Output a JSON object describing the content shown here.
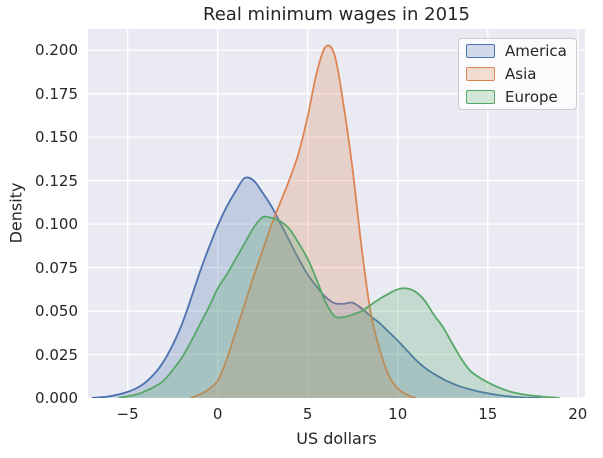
{
  "style": {
    "axes_bg": "#EAEAF2",
    "grid_color": "#FFFFFF",
    "text_color": "#262626",
    "legend_border": "#CCCCCC"
  },
  "chart_data": {
    "type": "area",
    "subtype": "kde-density",
    "title": "Real minimum wages in 2015",
    "xlabel": "US dollars",
    "ylabel": "Density",
    "xlim": [
      -7.2,
      20.4
    ],
    "ylim": [
      0,
      0.2122
    ],
    "grid": true,
    "legend_position": "upper-right",
    "xticks": {
      "values": [
        -5,
        0,
        5,
        10,
        15,
        20
      ],
      "labels": [
        "−5",
        "0",
        "5",
        "10",
        "15",
        "20"
      ]
    },
    "yticks": {
      "values": [
        0,
        0.025,
        0.05,
        0.075,
        0.1,
        0.125,
        0.15,
        0.175,
        0.2
      ],
      "labels": [
        "0.000",
        "0.025",
        "0.050",
        "0.075",
        "0.100",
        "0.125",
        "0.150",
        "0.175",
        "0.200"
      ]
    },
    "series": [
      {
        "name": "America",
        "color": "#4C72B0",
        "fill_opacity": 0.25,
        "peak": {
          "x": 1.5,
          "density": 0.1265
        },
        "points": [
          [
            -7,
            0
          ],
          [
            -6,
            0.001
          ],
          [
            -5,
            0.0035
          ],
          [
            -4,
            0.009
          ],
          [
            -3,
            0.021
          ],
          [
            -2,
            0.042
          ],
          [
            -1,
            0.072
          ],
          [
            -0.5,
            0.086
          ],
          [
            0,
            0.099
          ],
          [
            0.5,
            0.11
          ],
          [
            1,
            0.119
          ],
          [
            1.5,
            0.1265
          ],
          [
            2,
            0.125
          ],
          [
            2.5,
            0.118
          ],
          [
            3,
            0.11
          ],
          [
            3.5,
            0.1
          ],
          [
            4,
            0.09
          ],
          [
            4.5,
            0.08
          ],
          [
            5,
            0.071
          ],
          [
            5.5,
            0.064
          ],
          [
            6,
            0.058
          ],
          [
            6.5,
            0.0545
          ],
          [
            7,
            0.0542
          ],
          [
            7.5,
            0.0548
          ],
          [
            8,
            0.0515
          ],
          [
            8.5,
            0.047
          ],
          [
            9,
            0.043
          ],
          [
            9.5,
            0.038
          ],
          [
            10,
            0.033
          ],
          [
            10.5,
            0.0275
          ],
          [
            11,
            0.022
          ],
          [
            11.5,
            0.0175
          ],
          [
            12,
            0.014
          ],
          [
            12.5,
            0.011
          ],
          [
            13,
            0.0085
          ],
          [
            13.5,
            0.0065
          ],
          [
            14,
            0.005
          ],
          [
            14.5,
            0.0037
          ],
          [
            15,
            0.0027
          ],
          [
            15.5,
            0.0018
          ],
          [
            16,
            0.0011
          ],
          [
            16.5,
            0.0006
          ],
          [
            17,
            0.0003
          ],
          [
            17.5,
            0.0001
          ],
          [
            18,
            0
          ]
        ]
      },
      {
        "name": "Asia",
        "color": "#DD8452",
        "fill_opacity": 0.25,
        "peak": {
          "x": 6,
          "density": 0.202
        },
        "points": [
          [
            -1.5,
            0
          ],
          [
            -1,
            0.002
          ],
          [
            -0.5,
            0.005
          ],
          [
            0,
            0.01
          ],
          [
            0.5,
            0.022
          ],
          [
            1,
            0.038
          ],
          [
            1.5,
            0.054
          ],
          [
            2,
            0.07
          ],
          [
            2.5,
            0.085
          ],
          [
            3,
            0.1
          ],
          [
            3.5,
            0.113
          ],
          [
            4,
            0.126
          ],
          [
            4.5,
            0.141
          ],
          [
            5,
            0.162
          ],
          [
            5.5,
            0.187
          ],
          [
            6,
            0.202
          ],
          [
            6.5,
            0.197
          ],
          [
            7,
            0.168
          ],
          [
            7.5,
            0.131
          ],
          [
            8,
            0.086
          ],
          [
            8.5,
            0.049
          ],
          [
            9,
            0.028
          ],
          [
            9.5,
            0.013
          ],
          [
            10,
            0.0055
          ],
          [
            10.5,
            0.002
          ],
          [
            11,
            0
          ]
        ]
      },
      {
        "name": "Europe",
        "color": "#55A868",
        "fill_opacity": 0.25,
        "peak": {
          "x": 2.5,
          "density": 0.104
        },
        "points": [
          [
            -5.5,
            0
          ],
          [
            -5,
            0.001
          ],
          [
            -4.5,
            0.002
          ],
          [
            -4,
            0.004
          ],
          [
            -3.5,
            0.0065
          ],
          [
            -3,
            0.01
          ],
          [
            -2.5,
            0.016
          ],
          [
            -2,
            0.023
          ],
          [
            -1.5,
            0.032
          ],
          [
            -1,
            0.042
          ],
          [
            -0.5,
            0.052
          ],
          [
            0,
            0.063
          ],
          [
            0.5,
            0.071
          ],
          [
            1,
            0.08
          ],
          [
            1.5,
            0.089
          ],
          [
            2,
            0.098
          ],
          [
            2.5,
            0.104
          ],
          [
            3,
            0.1035
          ],
          [
            3.5,
            0.1015
          ],
          [
            4,
            0.097
          ],
          [
            4.5,
            0.089
          ],
          [
            5,
            0.08
          ],
          [
            5.5,
            0.068
          ],
          [
            6,
            0.055
          ],
          [
            6.5,
            0.047
          ],
          [
            7,
            0.0465
          ],
          [
            7.5,
            0.048
          ],
          [
            8,
            0.05
          ],
          [
            8.5,
            0.0535
          ],
          [
            9,
            0.057
          ],
          [
            9.5,
            0.06
          ],
          [
            10,
            0.0625
          ],
          [
            10.5,
            0.063
          ],
          [
            11,
            0.061
          ],
          [
            11.5,
            0.056
          ],
          [
            12,
            0.048
          ],
          [
            12.5,
            0.041
          ],
          [
            13,
            0.032
          ],
          [
            13.5,
            0.023
          ],
          [
            14,
            0.016
          ],
          [
            14.5,
            0.012
          ],
          [
            15,
            0.009
          ],
          [
            15.5,
            0.0065
          ],
          [
            16,
            0.0045
          ],
          [
            16.5,
            0.003
          ],
          [
            17,
            0.002
          ],
          [
            17.5,
            0.0013
          ],
          [
            18,
            0.0008
          ],
          [
            18.5,
            0.0004
          ],
          [
            19,
            0
          ]
        ]
      }
    ]
  }
}
